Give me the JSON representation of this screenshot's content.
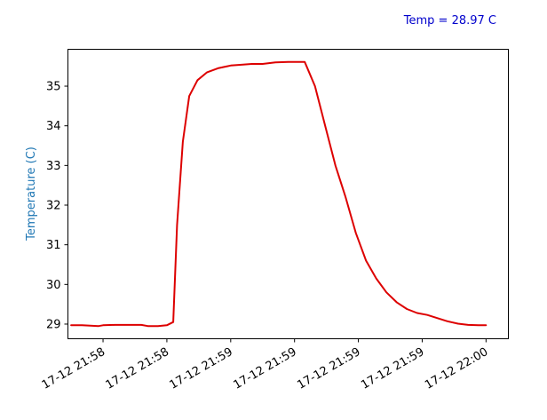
{
  "chart_data": {
    "type": "line",
    "title": "",
    "xlabel": "",
    "ylabel": "Temperature (C)",
    "annotation": "Temp = 28.97 C",
    "colors": {
      "line": "#dd0000",
      "ylabel": "#1f77b4",
      "annotation": "#0000cc"
    },
    "x_ticks": [
      "17-12 21:58",
      "17-12 21:58",
      "17-12 21:59",
      "17-12 21:59",
      "17-12 21:59",
      "17-12 21:59",
      "17-12 22:00"
    ],
    "xlim": [
      -0.55,
      6.35
    ],
    "ylim": [
      28.63,
      35.93
    ],
    "y_ticks": [
      29,
      30,
      31,
      32,
      33,
      34,
      35
    ],
    "grid": false,
    "series": [
      {
        "x": [
          -0.5,
          -0.33,
          -0.07,
          0.0,
          0.18,
          0.35,
          0.6,
          0.7,
          0.86,
          1.0,
          1.1,
          1.16,
          1.25,
          1.35,
          1.48,
          1.63,
          1.8,
          2.0,
          2.17,
          2.33,
          2.5,
          2.7,
          2.9,
          3.0,
          3.16,
          3.32,
          3.48,
          3.64,
          3.8,
          3.96,
          4.12,
          4.28,
          4.44,
          4.6,
          4.76,
          4.92,
          5.08,
          5.24,
          5.4,
          5.56,
          5.72,
          5.88,
          6.0
        ],
        "y": [
          28.97,
          28.97,
          28.95,
          28.97,
          28.98,
          28.98,
          28.98,
          28.95,
          28.95,
          28.97,
          29.05,
          31.5,
          33.6,
          34.75,
          35.15,
          35.35,
          35.45,
          35.52,
          35.54,
          35.56,
          35.56,
          35.6,
          35.61,
          35.61,
          35.61,
          35.0,
          34.0,
          33.0,
          32.2,
          31.3,
          30.6,
          30.15,
          29.8,
          29.55,
          29.38,
          29.28,
          29.23,
          29.15,
          29.07,
          29.01,
          28.98,
          28.97,
          28.97
        ]
      }
    ]
  }
}
